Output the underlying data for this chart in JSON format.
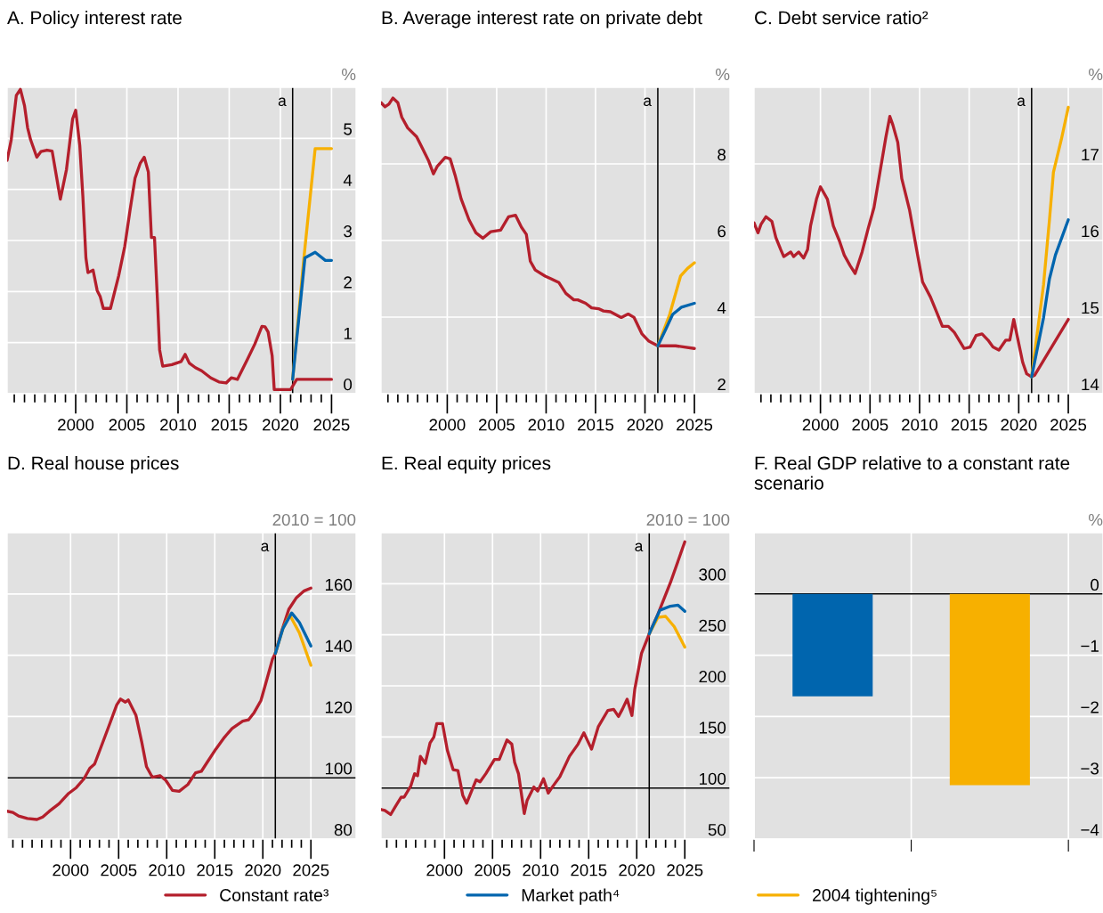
{
  "chart_data": [
    {
      "type": "line",
      "title": "A. Policy interest rate",
      "ylabel": "%",
      "xlim": [
        1993.3,
        2027.4
      ],
      "ylim": [
        0,
        6
      ],
      "yticks": [
        0,
        1,
        2,
        3,
        4,
        5
      ],
      "xticks": [
        {
          "value": 1994,
          "label": null
        },
        {
          "value": 1995,
          "label": null
        },
        {
          "value": 1996,
          "label": null
        },
        {
          "value": 1997,
          "label": null
        },
        {
          "value": 1998,
          "label": null
        },
        {
          "value": 1999,
          "label": null
        },
        2000,
        {
          "value": 2001,
          "label": null
        },
        {
          "value": 2002,
          "label": null
        },
        {
          "value": 2003,
          "label": null
        },
        {
          "value": 2004,
          "label": null
        },
        2005,
        {
          "value": 2006,
          "label": null
        },
        {
          "value": 2007,
          "label": null
        },
        {
          "value": 2008,
          "label": null
        },
        {
          "value": 2009,
          "label": null
        },
        2010,
        {
          "value": 2011,
          "label": null
        },
        {
          "value": 2012,
          "label": null
        },
        {
          "value": 2013,
          "label": null
        },
        {
          "value": 2014,
          "label": null
        },
        2015,
        {
          "value": 2016,
          "label": null
        },
        {
          "value": 2017,
          "label": null
        },
        {
          "value": 2018,
          "label": null
        },
        {
          "value": 2019,
          "label": null
        },
        2020,
        {
          "value": 2021,
          "label": null
        },
        {
          "value": 2022,
          "label": null
        },
        {
          "value": 2023,
          "label": null
        },
        {
          "value": 2024,
          "label": null
        },
        2025
      ],
      "grid": true,
      "legend": "bottom",
      "ref_lines": [
        {
          "axis": "x",
          "value": 2021.2,
          "label": "a"
        }
      ],
      "series": [
        {
          "name": "Constant rate³",
          "color": "#b41f2c",
          "x": [
            1993.3,
            1993.7,
            1994.2,
            1994.6,
            1995.0,
            1995.3,
            1995.6,
            1996.2,
            1996.6,
            1997.2,
            1997.7,
            1998.1,
            1998.5,
            1999.1,
            1999.7,
            2000.0,
            2000.4,
            2000.7,
            2001.0,
            2001.2,
            2001.7,
            2002.1,
            2002.4,
            2002.7,
            2003.4,
            2004.2,
            2004.8,
            2005.3,
            2005.8,
            2006.3,
            2006.7,
            2007.1,
            2007.4,
            2007.7,
            2008.0,
            2008.2,
            2008.5,
            2009.4,
            2010.3,
            2010.7,
            2011.1,
            2011.7,
            2012.3,
            2013.2,
            2014.0,
            2014.7,
            2015.2,
            2015.8,
            2016.8,
            2017.5,
            2018.2,
            2018.5,
            2018.8,
            2019.2,
            2019.4,
            2021.0,
            2021.6,
            2025.0
          ],
          "values": [
            4.57,
            4.97,
            5.84,
            5.96,
            5.64,
            5.21,
            4.97,
            4.63,
            4.74,
            4.77,
            4.75,
            4.28,
            3.81,
            4.39,
            5.38,
            5.55,
            4.86,
            3.87,
            2.66,
            2.37,
            2.42,
            2.02,
            1.9,
            1.67,
            1.67,
            2.31,
            2.89,
            3.58,
            4.22,
            4.51,
            4.63,
            4.34,
            3.06,
            3.06,
            1.79,
            0.86,
            0.54,
            0.57,
            0.63,
            0.77,
            0.6,
            0.51,
            0.45,
            0.31,
            0.23,
            0.21,
            0.31,
            0.28,
            0.68,
            0.97,
            1.32,
            1.31,
            1.21,
            0.74,
            0.08,
            0.08,
            0.28,
            0.28
          ]
        },
        {
          "name": "Market path⁴",
          "color": "#0065ae",
          "x": [
            2021.2,
            2022.4,
            2023.4,
            2024.4,
            2025.0
          ],
          "values": [
            0.28,
            2.66,
            2.77,
            2.61,
            2.61
          ]
        },
        {
          "name": "2004 tightening⁵",
          "color": "#f7b000",
          "x": [
            2021.2,
            2022.3,
            2023.4,
            2025.0
          ],
          "values": [
            0.28,
            2.66,
            4.8,
            4.8
          ]
        }
      ]
    },
    {
      "type": "line",
      "title": "B. Average interest rate on private debt",
      "ylabel": "%",
      "xlim": [
        1993.3,
        2028.6
      ],
      "ylim": [
        2,
        10
      ],
      "yticks": [
        2,
        4,
        6,
        8
      ],
      "xticks": [
        {
          "value": 1994,
          "label": null
        },
        {
          "value": 1995,
          "label": null
        },
        {
          "value": 1996,
          "label": null
        },
        {
          "value": 1997,
          "label": null
        },
        {
          "value": 1998,
          "label": null
        },
        {
          "value": 1999,
          "label": null
        },
        2000,
        {
          "value": 2001,
          "label": null
        },
        {
          "value": 2002,
          "label": null
        },
        {
          "value": 2003,
          "label": null
        },
        {
          "value": 2004,
          "label": null
        },
        2005,
        {
          "value": 2006,
          "label": null
        },
        {
          "value": 2007,
          "label": null
        },
        {
          "value": 2008,
          "label": null
        },
        {
          "value": 2009,
          "label": null
        },
        2010,
        {
          "value": 2011,
          "label": null
        },
        {
          "value": 2012,
          "label": null
        },
        {
          "value": 2013,
          "label": null
        },
        {
          "value": 2014,
          "label": null
        },
        2015,
        {
          "value": 2016,
          "label": null
        },
        {
          "value": 2017,
          "label": null
        },
        {
          "value": 2018,
          "label": null
        },
        {
          "value": 2019,
          "label": null
        },
        2020,
        {
          "value": 2021,
          "label": null
        },
        {
          "value": 2022,
          "label": null
        },
        {
          "value": 2023,
          "label": null
        },
        {
          "value": 2024,
          "label": null
        },
        2025
      ],
      "grid": true,
      "ref_lines": [
        {
          "axis": "x",
          "value": 2021.3,
          "label": "a"
        }
      ],
      "series": [
        {
          "color": "#b41f2c",
          "x": [
            1993.3,
            1993.7,
            1994.1,
            1994.5,
            1995.0,
            1995.4,
            1996.0,
            1996.9,
            1997.5,
            1998.1,
            1998.6,
            1999.0,
            1999.8,
            2000.3,
            2000.8,
            2001.4,
            2002.2,
            2002.9,
            2003.6,
            2004.4,
            2005.4,
            2006.2,
            2006.9,
            2007.5,
            2008.0,
            2008.4,
            2008.9,
            2009.9,
            2010.5,
            2011.3,
            2012.0,
            2012.8,
            2013.2,
            2014.0,
            2014.6,
            2015.3,
            2015.8,
            2016.5,
            2017.6,
            2018.3,
            2018.9,
            2019.7,
            2020.4,
            2021.3,
            2023.1,
            2025.0
          ],
          "values": [
            9.6,
            9.49,
            9.56,
            9.72,
            9.6,
            9.22,
            8.94,
            8.71,
            8.4,
            8.09,
            7.74,
            7.94,
            8.17,
            8.13,
            7.7,
            7.09,
            6.54,
            6.2,
            6.06,
            6.23,
            6.27,
            6.62,
            6.66,
            6.35,
            6.16,
            5.46,
            5.23,
            5.07,
            5.0,
            4.9,
            4.62,
            4.45,
            4.45,
            4.36,
            4.24,
            4.22,
            4.16,
            4.14,
            3.99,
            4.08,
            3.99,
            3.56,
            3.37,
            3.25,
            3.25,
            3.18
          ]
        },
        {
          "color": "#0065ae",
          "x": [
            2021.3,
            2022.1,
            2022.8,
            2023.7,
            2025.0
          ],
          "values": [
            3.25,
            3.68,
            4.07,
            4.26,
            4.36
          ]
        },
        {
          "color": "#f7b000",
          "x": [
            2021.3,
            2022.5,
            2023.6,
            2024.3,
            2025.0
          ],
          "values": [
            3.25,
            4.07,
            5.07,
            5.27,
            5.42
          ]
        }
      ]
    },
    {
      "type": "line",
      "title": "C. Debt service ratio²",
      "ylabel": "%",
      "xlim": [
        1993.3,
        2028.5
      ],
      "ylim": [
        14,
        18
      ],
      "yticks": [
        14,
        15,
        16,
        17
      ],
      "xticks": [
        {
          "value": 1994,
          "label": null
        },
        {
          "value": 1995,
          "label": null
        },
        {
          "value": 1996,
          "label": null
        },
        {
          "value": 1997,
          "label": null
        },
        {
          "value": 1998,
          "label": null
        },
        {
          "value": 1999,
          "label": null
        },
        2000,
        {
          "value": 2001,
          "label": null
        },
        {
          "value": 2002,
          "label": null
        },
        {
          "value": 2003,
          "label": null
        },
        {
          "value": 2004,
          "label": null
        },
        2005,
        {
          "value": 2006,
          "label": null
        },
        {
          "value": 2007,
          "label": null
        },
        {
          "value": 2008,
          "label": null
        },
        {
          "value": 2009,
          "label": null
        },
        2010,
        {
          "value": 2011,
          "label": null
        },
        {
          "value": 2012,
          "label": null
        },
        {
          "value": 2013,
          "label": null
        },
        {
          "value": 2014,
          "label": null
        },
        2015,
        {
          "value": 2016,
          "label": null
        },
        {
          "value": 2017,
          "label": null
        },
        {
          "value": 2018,
          "label": null
        },
        {
          "value": 2019,
          "label": null
        },
        2020,
        {
          "value": 2021,
          "label": null
        },
        {
          "value": 2022,
          "label": null
        },
        {
          "value": 2023,
          "label": null
        },
        {
          "value": 2024,
          "label": null
        },
        2025
      ],
      "grid": true,
      "ref_lines": [
        {
          "axis": "x",
          "value": 2021.3,
          "label": "a"
        }
      ],
      "series": [
        {
          "color": "#b41f2c",
          "x": [
            1993.3,
            1993.7,
            1994.0,
            1994.5,
            1995.1,
            1995.5,
            1996.0,
            1996.3,
            1997.0,
            1997.3,
            1997.8,
            1998.3,
            1998.7,
            1999.0,
            1999.6,
            2000.0,
            2000.7,
            2001.3,
            2001.9,
            2002.4,
            2003.0,
            2003.5,
            2004.2,
            2004.8,
            2005.4,
            2006.0,
            2006.6,
            2007.0,
            2007.3,
            2007.8,
            2008.2,
            2009.0,
            2009.7,
            2010.3,
            2011.1,
            2011.7,
            2012.3,
            2012.9,
            2013.5,
            2014.5,
            2015.1,
            2015.7,
            2016.3,
            2016.9,
            2017.4,
            2018.0,
            2018.7,
            2019.1,
            2019.5,
            2019.8,
            2020.4,
            2020.8,
            2021.3,
            2021.6,
            2025.0
          ],
          "values": [
            16.23,
            16.1,
            16.21,
            16.31,
            16.25,
            16.04,
            15.88,
            15.79,
            15.85,
            15.79,
            15.85,
            15.77,
            15.88,
            16.19,
            16.54,
            16.7,
            16.54,
            16.19,
            16.0,
            15.81,
            15.67,
            15.57,
            15.85,
            16.15,
            16.43,
            16.89,
            17.35,
            17.62,
            17.51,
            17.28,
            16.81,
            16.39,
            15.88,
            15.46,
            15.26,
            15.07,
            14.88,
            14.88,
            14.8,
            14.59,
            14.61,
            14.76,
            14.78,
            14.7,
            14.61,
            14.57,
            14.7,
            14.7,
            14.97,
            14.78,
            14.41,
            14.26,
            14.22,
            14.24,
            14.97
          ]
        },
        {
          "color": "#0065ae",
          "x": [
            2021.3,
            2022.5,
            2023.1,
            2023.7,
            2025.0
          ],
          "values": [
            14.22,
            14.99,
            15.5,
            15.81,
            16.27
          ]
        },
        {
          "color": "#f7b000",
          "x": [
            2021.3,
            2022.5,
            2023.1,
            2023.5,
            2024.3,
            2025.0
          ],
          "values": [
            14.22,
            15.42,
            16.27,
            16.89,
            17.32,
            17.74
          ]
        }
      ]
    },
    {
      "type": "line",
      "title": "D. Real house prices",
      "ylabel": "2010 = 100",
      "xlim": [
        1993.4,
        2029.7
      ],
      "ylim": [
        80,
        180
      ],
      "yticks": [
        80,
        100,
        120,
        140,
        160
      ],
      "xticks": [
        {
          "value": 1994,
          "label": null
        },
        {
          "value": 1995,
          "label": null
        },
        {
          "value": 1996,
          "label": null
        },
        {
          "value": 1997,
          "label": null
        },
        {
          "value": 1998,
          "label": null
        },
        {
          "value": 1999,
          "label": null
        },
        2000,
        {
          "value": 2001,
          "label": null
        },
        {
          "value": 2002,
          "label": null
        },
        {
          "value": 2003,
          "label": null
        },
        {
          "value": 2004,
          "label": null
        },
        2005,
        {
          "value": 2006,
          "label": null
        },
        {
          "value": 2007,
          "label": null
        },
        {
          "value": 2008,
          "label": null
        },
        {
          "value": 2009,
          "label": null
        },
        2010,
        {
          "value": 2011,
          "label": null
        },
        {
          "value": 2012,
          "label": null
        },
        {
          "value": 2013,
          "label": null
        },
        {
          "value": 2014,
          "label": null
        },
        2015,
        {
          "value": 2016,
          "label": null
        },
        {
          "value": 2017,
          "label": null
        },
        {
          "value": 2018,
          "label": null
        },
        {
          "value": 2019,
          "label": null
        },
        2020,
        {
          "value": 2021,
          "label": null
        },
        {
          "value": 2022,
          "label": null
        },
        {
          "value": 2023,
          "label": null
        },
        {
          "value": 2024,
          "label": null
        },
        2025
      ],
      "grid": true,
      "ref_lines": [
        {
          "axis": "x",
          "value": 2021.3,
          "label": "a"
        },
        {
          "axis": "y",
          "value": 100
        }
      ],
      "series": [
        {
          "color": "#b41f2c",
          "x": [
            1993.4,
            1994.0,
            1994.6,
            1995.5,
            1996.5,
            1997.1,
            1997.8,
            1998.8,
            1999.8,
            2000.6,
            2001.4,
            2002.0,
            2002.5,
            2003.2,
            2004.0,
            2004.8,
            2005.2,
            2005.7,
            2006.0,
            2006.8,
            2007.4,
            2007.9,
            2008.5,
            2009.3,
            2009.9,
            2010.6,
            2011.3,
            2012.2,
            2013.0,
            2013.6,
            2014.2,
            2015.1,
            2016.0,
            2016.8,
            2017.9,
            2018.5,
            2019.1,
            2019.8,
            2020.4,
            2021.0,
            2021.3,
            2021.9,
            2022.7,
            2023.5,
            2024.3,
            2025.0
          ],
          "values": [
            89.1,
            88.7,
            87.5,
            86.7,
            86.4,
            87.2,
            89.1,
            91.5,
            94.9,
            96.8,
            99.7,
            103.1,
            104.5,
            110.3,
            117.0,
            123.8,
            125.7,
            124.7,
            125.4,
            120.4,
            111.7,
            103.6,
            100.2,
            100.7,
            99.2,
            95.9,
            95.6,
            97.8,
            101.6,
            102.1,
            105.0,
            109.3,
            113.2,
            116.1,
            118.5,
            118.9,
            121.3,
            125.2,
            131.9,
            138.7,
            140.6,
            147.3,
            155.0,
            158.8,
            161.0,
            161.9
          ]
        },
        {
          "color": "#0065ae",
          "x": [
            2021.3,
            2022.1,
            2023.0,
            2023.8,
            2025.0
          ],
          "values": [
            140.6,
            148.8,
            153.8,
            150.7,
            143.0
          ]
        },
        {
          "color": "#f7b000",
          "x": [
            2021.3,
            2022.1,
            2022.8,
            2023.8,
            2025.0
          ],
          "values": [
            140.6,
            148.8,
            153.1,
            147.3,
            136.7
          ]
        }
      ]
    },
    {
      "type": "line",
      "title": "E. Real equity prices",
      "ylabel": "2010 = 100",
      "xlim": [
        1993.4,
        2029.7
      ],
      "ylim": [
        50,
        350
      ],
      "yticks": [
        50,
        100,
        150,
        200,
        250,
        300
      ],
      "xticks": [
        {
          "value": 1994,
          "label": null
        },
        {
          "value": 1995,
          "label": null
        },
        {
          "value": 1996,
          "label": null
        },
        {
          "value": 1997,
          "label": null
        },
        {
          "value": 1998,
          "label": null
        },
        {
          "value": 1999,
          "label": null
        },
        2000,
        {
          "value": 2001,
          "label": null
        },
        {
          "value": 2002,
          "label": null
        },
        {
          "value": 2003,
          "label": null
        },
        {
          "value": 2004,
          "label": null
        },
        2005,
        {
          "value": 2006,
          "label": null
        },
        {
          "value": 2007,
          "label": null
        },
        {
          "value": 2008,
          "label": null
        },
        {
          "value": 2009,
          "label": null
        },
        2010,
        {
          "value": 2011,
          "label": null
        },
        {
          "value": 2012,
          "label": null
        },
        {
          "value": 2013,
          "label": null
        },
        {
          "value": 2014,
          "label": null
        },
        2015,
        {
          "value": 2016,
          "label": null
        },
        {
          "value": 2017,
          "label": null
        },
        {
          "value": 2018,
          "label": null
        },
        {
          "value": 2019,
          "label": null
        },
        2020,
        {
          "value": 2021,
          "label": null
        },
        {
          "value": 2022,
          "label": null
        },
        {
          "value": 2023,
          "label": null
        },
        {
          "value": 2024,
          "label": null
        },
        2025
      ],
      "grid": true,
      "ref_lines": [
        {
          "axis": "x",
          "value": 2021.3,
          "label": "a"
        },
        {
          "axis": "y",
          "value": 100
        }
      ],
      "series": [
        {
          "color": "#b41f2c",
          "x": [
            1993.4,
            1993.8,
            1994.4,
            1994.9,
            1995.5,
            1995.8,
            1996.5,
            1996.9,
            1997.2,
            1997.5,
            1998.0,
            1998.5,
            1998.9,
            1999.2,
            1999.8,
            2000.3,
            2000.9,
            2001.4,
            2001.9,
            2002.3,
            2003.3,
            2003.7,
            2004.3,
            2005.2,
            2005.7,
            2006.5,
            2007.0,
            2007.3,
            2007.7,
            2008.3,
            2008.6,
            2009.3,
            2009.7,
            2010.3,
            2010.8,
            2011.3,
            2012.0,
            2013.0,
            2013.9,
            2014.5,
            2014.8,
            2015.3,
            2016.0,
            2017.0,
            2017.6,
            2018.1,
            2018.5,
            2019.0,
            2019.5,
            2019.8,
            2020.5,
            2021.3,
            2022.2,
            2023.5,
            2025.0
          ],
          "values": [
            79,
            78,
            74,
            82,
            91,
            91,
            102,
            114,
            112,
            131,
            124,
            144,
            150,
            163,
            163,
            137,
            118,
            117,
            93,
            85,
            108,
            106,
            114,
            128,
            128,
            147,
            143,
            125,
            114,
            75,
            88,
            101,
            97,
            109,
            95,
            102,
            111,
            131,
            143,
            154,
            148,
            138,
            160,
            176,
            177,
            170,
            177,
            187,
            171,
            197,
            232,
            251,
            270,
            301,
            341
          ]
        },
        {
          "color": "#0065ae",
          "x": [
            2021.3,
            2022.4,
            2023.5,
            2024.3,
            2025.0
          ],
          "values": [
            251,
            274,
            278,
            279,
            273
          ]
        },
        {
          "color": "#f7b000",
          "x": [
            2021.3,
            2022.2,
            2023.0,
            2023.9,
            2025.0
          ],
          "values": [
            251,
            267,
            268,
            258,
            238
          ]
        }
      ]
    },
    {
      "type": "bar",
      "title": "F. Real GDP relative to a constant rate scenario",
      "ylabel": "%",
      "categories": [
        null,
        null
      ],
      "values": [
        -1.67,
        -3.12
      ],
      "colors": [
        "#0065ae",
        "#f7b000"
      ],
      "ylim": [
        -4,
        1
      ],
      "yticks": [
        {
          "value": -4,
          "label": "−4"
        },
        {
          "value": -3,
          "label": "−3"
        },
        {
          "value": -2,
          "label": "−2"
        },
        {
          "value": -1,
          "label": "−1"
        },
        0
      ],
      "grid": true,
      "ref_lines": [
        {
          "axis": "y",
          "value": 0
        }
      ]
    }
  ]
}
